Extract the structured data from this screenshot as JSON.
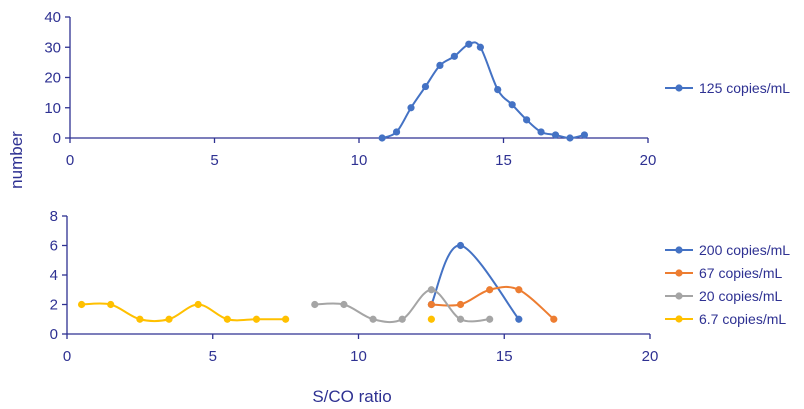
{
  "colors": {
    "axis": "#2e3192",
    "text": "#2e3192",
    "s125": "#4472c4",
    "s200": "#4472c4",
    "s67": "#ed7d31",
    "s20": "#a5a5a5",
    "s6_7": "#ffc000"
  },
  "shared_labels": {
    "ylabel": "number",
    "xlabel": "S/CO ratio"
  },
  "chart_data": [
    {
      "type": "line",
      "smooth": true,
      "xlim": [
        0,
        20
      ],
      "ylim": [
        0,
        40
      ],
      "xticks": [
        "0",
        "5",
        "10",
        "15",
        "20"
      ],
      "yticks": [
        "0",
        "10",
        "20",
        "30",
        "40"
      ],
      "legend_position": "right",
      "series": [
        {
          "name": "125 copies/mL",
          "color_key": "s125",
          "points": [
            [
              10.8,
              0
            ],
            [
              11.3,
              2
            ],
            [
              11.8,
              10
            ],
            [
              12.3,
              17
            ],
            [
              12.8,
              24
            ],
            [
              13.3,
              27
            ],
            [
              13.8,
              31
            ],
            [
              14.2,
              30
            ],
            [
              14.8,
              16
            ],
            [
              15.3,
              11
            ],
            [
              15.8,
              6
            ],
            [
              16.3,
              2
            ],
            [
              16.8,
              1
            ],
            [
              17.3,
              0
            ],
            [
              17.8,
              1
            ]
          ]
        }
      ]
    },
    {
      "type": "line",
      "smooth": true,
      "xlim": [
        0,
        20
      ],
      "ylim": [
        0,
        8
      ],
      "xticks": [
        "0",
        "5",
        "10",
        "15",
        "20"
      ],
      "yticks": [
        "0",
        "2",
        "4",
        "6",
        "8"
      ],
      "legend_position": "right",
      "series": [
        {
          "name": "200 copies/mL",
          "color_key": "s200",
          "points": [
            [
              12.5,
              2
            ],
            [
              13.5,
              6
            ],
            [
              15.5,
              1
            ]
          ]
        },
        {
          "name": "67 copies/mL",
          "color_key": "s67",
          "points": [
            [
              12.5,
              2
            ],
            [
              13.5,
              2
            ],
            [
              14.5,
              3
            ],
            [
              15.5,
              3
            ],
            [
              16.7,
              1
            ]
          ]
        },
        {
          "name": "20 copies/mL",
          "color_key": "s20",
          "points": [
            [
              8.5,
              2
            ],
            [
              9.5,
              2
            ],
            [
              10.5,
              1
            ],
            [
              11.5,
              1
            ],
            [
              12.5,
              3
            ],
            [
              13.5,
              1
            ],
            [
              14.5,
              1
            ]
          ]
        },
        {
          "name": "6.7 copies/mL",
          "color_key": "s6_7",
          "points": [
            [
              0.5,
              2
            ],
            [
              1.5,
              2
            ],
            [
              2.5,
              1
            ],
            [
              3.5,
              1
            ],
            [
              4.5,
              2
            ],
            [
              5.5,
              1
            ],
            [
              6.5,
              1
            ],
            [
              7.5,
              1
            ]
          ],
          "extra_points": [
            [
              12.5,
              1
            ]
          ]
        }
      ]
    }
  ]
}
